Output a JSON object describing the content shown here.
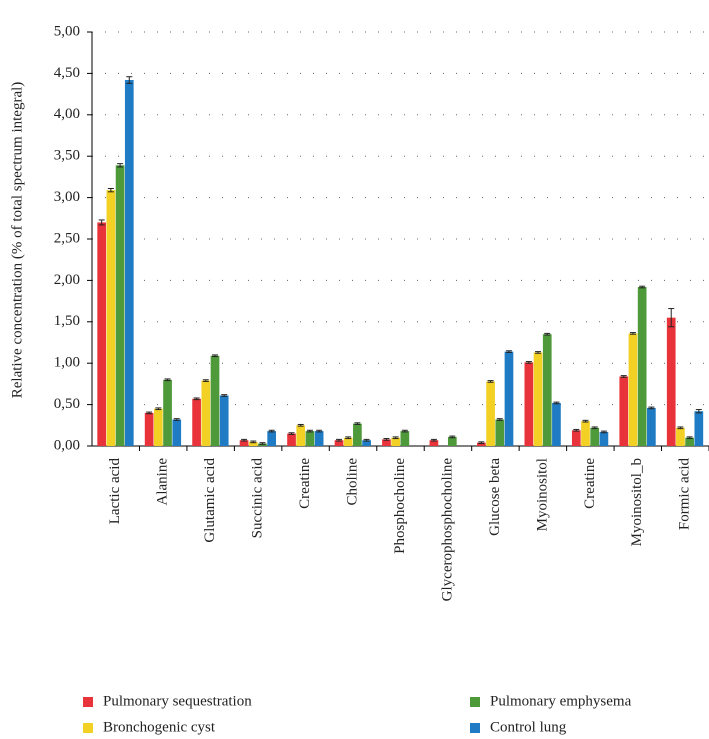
{
  "chart_data": {
    "type": "bar",
    "y_label": "Relative concentration (% of  total spectrum integral)",
    "categories": [
      "Lactic acid",
      "Alanine",
      "Glutamic acid",
      "Succinic acid",
      "Creatine",
      "Choline",
      "Phosphocholine",
      "Glycerophosphocholine",
      "Glucose beta",
      "Myoinositol",
      "Creatine",
      "Myoinositol_b",
      "Formic acid"
    ],
    "series": [
      {
        "name": "Pulmonary sequestration",
        "color": "#e8333a",
        "values": [
          2.7,
          0.4,
          0.57,
          0.07,
          0.15,
          0.07,
          0.08,
          0.07,
          0.04,
          1.01,
          0.19,
          0.84,
          1.55
        ],
        "errors": [
          0.03,
          0.01,
          0.01,
          0.01,
          0.01,
          0.01,
          0.01,
          0.01,
          0.01,
          0.01,
          0.01,
          0.01,
          0.11
        ]
      },
      {
        "name": "Bronchogenic cyst",
        "color": "#f2d024",
        "values": [
          3.09,
          0.45,
          0.79,
          0.05,
          0.25,
          0.1,
          0.1,
          0,
          0.78,
          1.13,
          0.3,
          1.36,
          0.22
        ],
        "errors": [
          0.02,
          0.01,
          0.01,
          0.01,
          0.01,
          0.01,
          0.01,
          0,
          0.01,
          0.01,
          0.01,
          0.01,
          0.01
        ]
      },
      {
        "name": "Pulmonary emphysema",
        "color": "#4e9a3a",
        "values": [
          3.39,
          0.8,
          1.09,
          0.03,
          0.18,
          0.27,
          0.18,
          0.11,
          0.32,
          1.35,
          0.22,
          1.92,
          0.1
        ],
        "errors": [
          0.02,
          0.01,
          0.01,
          0.01,
          0.01,
          0.01,
          0.01,
          0.01,
          0.01,
          0.01,
          0.01,
          0.01,
          0.01
        ]
      },
      {
        "name": "Control lung",
        "color": "#1f7cc4",
        "values": [
          4.42,
          0.32,
          0.61,
          0.18,
          0.18,
          0.07,
          0,
          0,
          1.14,
          0.52,
          0.17,
          0.46,
          0.42
        ],
        "errors": [
          0.04,
          0.01,
          0.01,
          0.01,
          0.01,
          0.01,
          0,
          0,
          0.01,
          0.01,
          0.01,
          0.01,
          0.02
        ]
      }
    ],
    "ylim": [
      0,
      5
    ],
    "yticks": [
      {
        "value": 0,
        "label": "0,00"
      },
      {
        "value": 0.5,
        "label": "0,50"
      },
      {
        "value": 1,
        "label": "1,00"
      },
      {
        "value": 1.5,
        "label": "1,50"
      },
      {
        "value": 2,
        "label": "2,00"
      },
      {
        "value": 2.5,
        "label": "2,50"
      },
      {
        "value": 3,
        "label": "3,00"
      },
      {
        "value": 3.5,
        "label": "3,50"
      },
      {
        "value": 4,
        "label": "4,00"
      },
      {
        "value": 4.5,
        "label": "4,50"
      },
      {
        "value": 5,
        "label": "5,00"
      }
    ],
    "grid": true
  }
}
